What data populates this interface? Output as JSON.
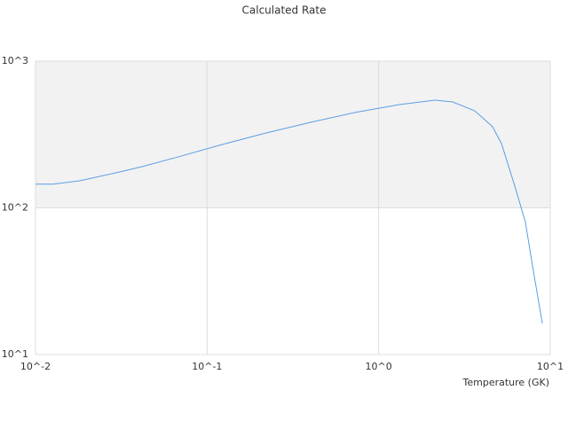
{
  "chart_data": {
    "type": "line",
    "title": "Calculated Rate",
    "x_label": "Temperature (GK)",
    "x": [
      0.01,
      0.0127,
      0.0182,
      0.0292,
      0.0418,
      0.0673,
      0.122,
      0.221,
      0.401,
      0.727,
      1.32,
      2.13,
      2.7,
      3.63,
      4.61,
      5.2,
      6.21,
      7.16,
      7.88,
      8.99
    ],
    "series": [
      {
        "color": "#5b9fe3",
        "values": [
          145,
          145,
          153,
          173,
          191,
          222,
          270,
          324,
          383,
          447,
          506,
          542,
          527,
          459,
          357,
          274,
          141,
          80.5,
          40.2,
          16.3
        ]
      }
    ],
    "xlim": [
      0.01,
      10
    ],
    "ylim": [
      10,
      1000
    ],
    "xticks": [
      {
        "value": 0.01,
        "label": "10^-2"
      },
      {
        "value": 0.1,
        "label": "10^-1"
      },
      {
        "value": 1,
        "label": "10^0"
      },
      {
        "value": 10,
        "label": "10^1"
      }
    ],
    "yticks": [
      {
        "value": 10,
        "label": "10^1"
      },
      {
        "value": 100,
        "label": "10^2"
      },
      {
        "value": 1000,
        "label": "10^3"
      }
    ],
    "xlog": true,
    "ylog": true,
    "band_color": "#f2f2f2",
    "grid_color": "#dddddd"
  }
}
